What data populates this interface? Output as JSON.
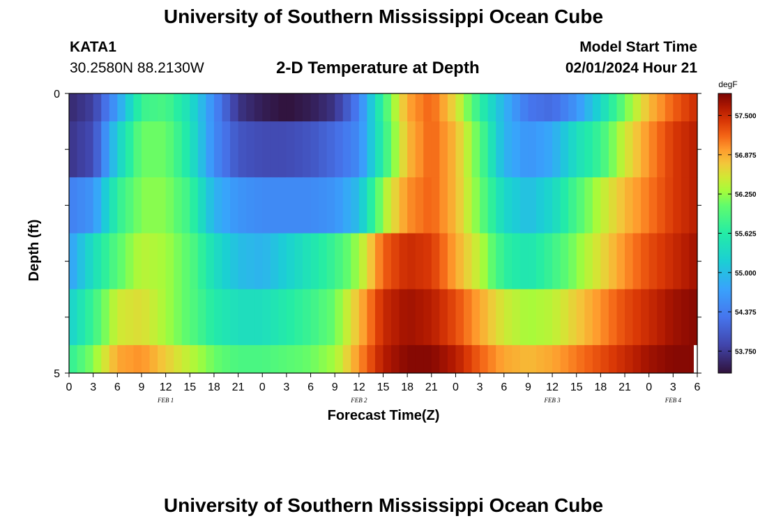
{
  "header": {
    "title": "University of Southern Mississippi Ocean Cube",
    "station": "KATA1",
    "coords": "30.2580N  88.2130W",
    "plot_title": "2-D Temperature at Depth",
    "model_label": "Model Start Time",
    "model_time": "02/01/2024 Hour 21"
  },
  "footer": {
    "title": "University of Southern Mississippi Ocean Cube"
  },
  "chart_data": {
    "type": "heatmap",
    "title": "2-D Temperature at Depth",
    "xlabel": "Forecast Time(Z)",
    "ylabel": "Depth (ft)",
    "colorbar_label": "degF",
    "colorbar_ticks": [
      "57.500",
      "56.875",
      "56.250",
      "55.625",
      "55.000",
      "54.375",
      "53.750"
    ],
    "colorbar_values": [
      57.5,
      56.875,
      56.25,
      55.625,
      55.0,
      54.375,
      53.75
    ],
    "vmin": 53.4,
    "vmax": 57.85,
    "y_ticks": [
      "0",
      "5"
    ],
    "ylim": [
      0,
      5
    ],
    "x_tick_labels": [
      "0",
      "3",
      "6",
      "9",
      "12",
      "15",
      "18",
      "21",
      "0",
      "3",
      "6",
      "9",
      "12",
      "15",
      "18",
      "21",
      "0",
      "3",
      "6",
      "9",
      "12",
      "15",
      "18",
      "21",
      "0",
      "3",
      "6"
    ],
    "x_range_hours": [
      0,
      78
    ],
    "date_labels": [
      {
        "label": "FEB 1",
        "hour": 12
      },
      {
        "label": "FEB 2",
        "hour": 36
      },
      {
        "label": "FEB 3",
        "hour": 60
      },
      {
        "label": "FEB 4",
        "hour": 75
      }
    ],
    "depth_bands": [
      "0.0-0.5",
      "0.5-1.5",
      "1.5-2.5",
      "2.5-3.5",
      "3.5-4.5",
      "4.5-5.0"
    ],
    "x_keyframes_hours": [
      0,
      3,
      6,
      9,
      12,
      15,
      18,
      21,
      24,
      27,
      30,
      33,
      36,
      39,
      42,
      45,
      48,
      51,
      54,
      57,
      60,
      63,
      66,
      69,
      72,
      75,
      78
    ],
    "rows": [
      [
        53.6,
        53.8,
        54.7,
        55.8,
        55.9,
        55.4,
        54.5,
        53.7,
        53.5,
        53.4,
        53.5,
        53.7,
        54.4,
        55.8,
        56.9,
        57.2,
        56.6,
        55.7,
        54.9,
        54.3,
        54.2,
        54.6,
        55.3,
        56.1,
        56.8,
        57.2,
        57.5
      ],
      [
        53.7,
        53.9,
        55.2,
        56.1,
        56.1,
        55.5,
        54.5,
        54.0,
        53.9,
        53.9,
        54.0,
        54.2,
        54.5,
        55.7,
        56.8,
        57.2,
        56.8,
        56.0,
        54.9,
        54.6,
        54.8,
        55.4,
        55.8,
        56.5,
        57.0,
        57.4,
        57.6
      ],
      [
        54.4,
        54.6,
        55.7,
        56.2,
        56.2,
        55.8,
        54.9,
        54.6,
        54.5,
        54.5,
        54.5,
        54.6,
        55.0,
        56.3,
        57.0,
        57.2,
        56.8,
        56.1,
        55.3,
        55.0,
        55.3,
        55.9,
        56.4,
        56.8,
        57.1,
        57.4,
        57.6
      ],
      [
        54.7,
        55.4,
        56.0,
        56.4,
        56.3,
        56.0,
        55.4,
        55.0,
        54.9,
        55.2,
        55.5,
        55.8,
        56.3,
        57.2,
        57.5,
        57.4,
        56.9,
        56.4,
        55.7,
        55.5,
        55.8,
        56.2,
        56.6,
        57.0,
        57.3,
        57.5,
        57.7
      ],
      [
        55.2,
        55.8,
        56.5,
        56.6,
        56.3,
        56.0,
        55.6,
        55.4,
        55.4,
        55.6,
        55.8,
        56.1,
        56.8,
        57.5,
        57.7,
        57.6,
        57.3,
        56.9,
        56.5,
        56.3,
        56.4,
        56.7,
        57.0,
        57.3,
        57.5,
        57.7,
        57.8
      ],
      [
        55.7,
        56.2,
        56.9,
        57.0,
        56.7,
        56.4,
        56.1,
        55.9,
        55.9,
        56.0,
        56.1,
        56.3,
        57.0,
        57.6,
        57.8,
        57.8,
        57.6,
        57.2,
        56.9,
        56.8,
        56.9,
        57.1,
        57.3,
        57.5,
        57.7,
        57.8,
        57.8
      ]
    ]
  }
}
